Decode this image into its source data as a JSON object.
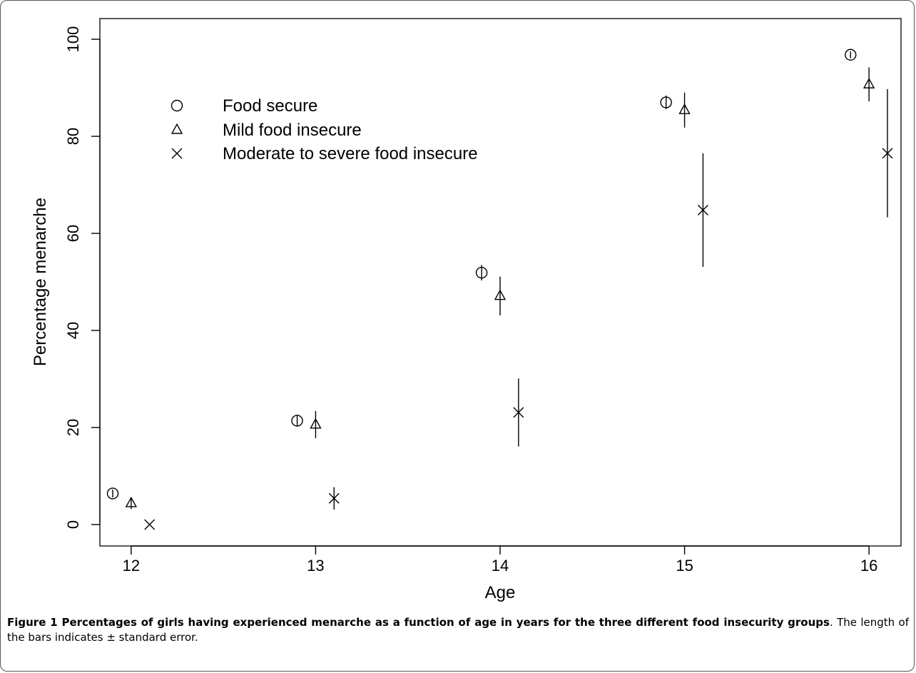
{
  "chart_data": {
    "type": "scatter",
    "xlabel": "Age",
    "ylabel": "Percentage menarche",
    "xticks": [
      "12",
      "13",
      "14",
      "15",
      "16"
    ],
    "yticks": [
      "0",
      "20",
      "40",
      "60",
      "80",
      "100"
    ],
    "xlim": [
      11.9,
      16.1
    ],
    "ylim": [
      0,
      100
    ],
    "grid": false,
    "legend_position": "top-left",
    "series": [
      {
        "name": "Food secure",
        "marker": "circle",
        "points": [
          {
            "x": 11.9,
            "y": 6.4,
            "se": 0.8
          },
          {
            "x": 12.9,
            "y": 21.4,
            "se": 1.2
          },
          {
            "x": 13.9,
            "y": 51.9,
            "se": 1.6
          },
          {
            "x": 14.9,
            "y": 87.0,
            "se": 1.4
          },
          {
            "x": 15.9,
            "y": 96.8,
            "se": 0.7
          }
        ]
      },
      {
        "name": "Mild food insecure",
        "marker": "triangle",
        "points": [
          {
            "x": 12.0,
            "y": 4.4,
            "se": 1.2
          },
          {
            "x": 13.0,
            "y": 20.6,
            "se": 2.8
          },
          {
            "x": 14.0,
            "y": 47.1,
            "se": 4.0
          },
          {
            "x": 15.0,
            "y": 85.4,
            "se": 3.6
          },
          {
            "x": 16.0,
            "y": 90.7,
            "se": 3.5
          }
        ]
      },
      {
        "name": "Moderate to severe food insecure",
        "marker": "x",
        "points": [
          {
            "x": 12.1,
            "y": 0.0,
            "se": 0.0
          },
          {
            "x": 13.1,
            "y": 5.4,
            "se": 2.3
          },
          {
            "x": 14.1,
            "y": 23.1,
            "se": 7.0
          },
          {
            "x": 15.1,
            "y": 64.8,
            "se": 11.7
          },
          {
            "x": 16.1,
            "y": 76.5,
            "se": 13.2
          }
        ]
      }
    ]
  },
  "caption": {
    "bold": "Figure 1 Percentages of girls having experienced menarche as a function of age in years for the three different food insecurity groups",
    "text": ". The length of the bars indicates ± standard error."
  }
}
